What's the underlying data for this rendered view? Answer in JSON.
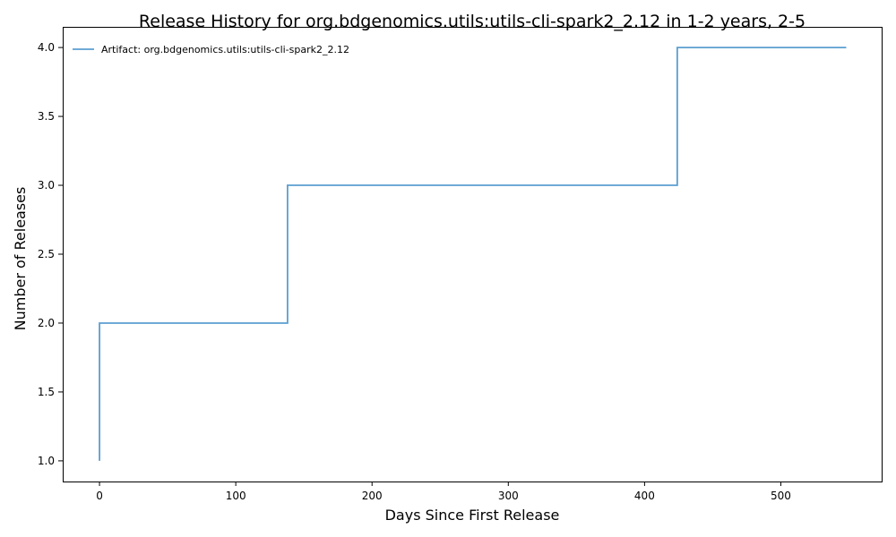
{
  "chart_data": {
    "type": "line",
    "step": true,
    "title": "Release History for org.bdgenomics.utils:utils-cli-spark2_2.12 in 1-2 years, 2-5",
    "xlabel": "Days Since First Release",
    "ylabel": "Number of Releases",
    "xlim": [
      -27,
      574
    ],
    "ylim": [
      0.85,
      4.15
    ],
    "xticks": [
      0,
      100,
      200,
      300,
      400,
      500
    ],
    "yticks": [
      1.0,
      1.5,
      2.0,
      2.5,
      3.0,
      3.5,
      4.0
    ],
    "xtick_labels": [
      "0",
      "100",
      "200",
      "300",
      "400",
      "500"
    ],
    "ytick_labels": [
      "1.0",
      "1.5",
      "2.0",
      "2.5",
      "3.0",
      "3.5",
      "4.0"
    ],
    "grid": false,
    "legend_position": "top-left",
    "series": [
      {
        "name": "Artifact: org.bdgenomics.utils:utils-cli-spark2_2.12",
        "color": "#5b9fd0",
        "x": [
          0,
          0,
          138,
          424,
          548
        ],
        "y": [
          1,
          2,
          3,
          4,
          4
        ]
      }
    ]
  }
}
